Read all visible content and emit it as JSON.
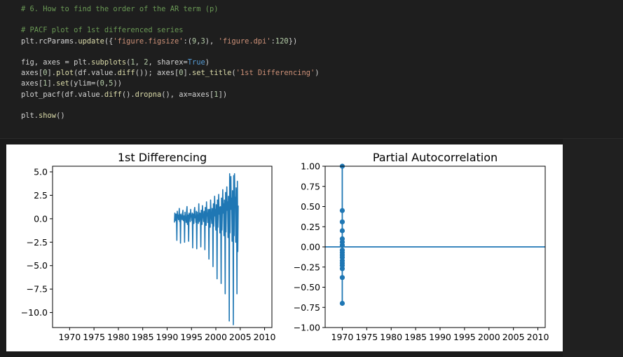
{
  "code": {
    "lines": [
      {
        "parts": [
          [
            "cmt",
            "# 6. How to find the order of the AR term (p)"
          ]
        ]
      },
      {
        "parts": []
      },
      {
        "parts": [
          [
            "cmt",
            "# PACF plot of 1st differenced series"
          ]
        ]
      },
      {
        "parts": [
          [
            "",
            "plt.rcParams."
          ],
          [
            "fn",
            "update"
          ],
          [
            "",
            "({"
          ],
          [
            "str",
            "'figure.figsize'"
          ],
          [
            "",
            ":("
          ],
          [
            "num",
            "9"
          ],
          [
            "",
            ","
          ],
          [
            "num",
            "3"
          ],
          [
            "",
            "), "
          ],
          [
            "str",
            "'figure.dpi'"
          ],
          [
            "",
            ":"
          ],
          [
            "num",
            "120"
          ],
          [
            "",
            "})"
          ]
        ]
      },
      {
        "parts": []
      },
      {
        "parts": [
          [
            "",
            "fig, axes = plt."
          ],
          [
            "fn",
            "subplots"
          ],
          [
            "",
            "("
          ],
          [
            "num",
            "1"
          ],
          [
            "",
            ", "
          ],
          [
            "num",
            "2"
          ],
          [
            "",
            ", sharex="
          ],
          [
            "kw",
            "True"
          ],
          [
            "",
            ")"
          ]
        ]
      },
      {
        "parts": [
          [
            "",
            "axes["
          ],
          [
            "num",
            "0"
          ],
          [
            "",
            "]."
          ],
          [
            "fn",
            "plot"
          ],
          [
            "",
            "(df.value."
          ],
          [
            "fn",
            "diff"
          ],
          [
            "",
            "()); axes["
          ],
          [
            "num",
            "0"
          ],
          [
            "",
            "]."
          ],
          [
            "fn",
            "set_title"
          ],
          [
            "",
            "("
          ],
          [
            "str",
            "'1st Differencing'"
          ],
          [
            "",
            ")"
          ]
        ]
      },
      {
        "parts": [
          [
            "",
            "axes["
          ],
          [
            "num",
            "1"
          ],
          [
            "",
            "]."
          ],
          [
            "fn",
            "set"
          ],
          [
            "",
            "(ylim=("
          ],
          [
            "num",
            "0"
          ],
          [
            "",
            ","
          ],
          [
            "num",
            "5"
          ],
          [
            "",
            "))"
          ]
        ]
      },
      {
        "parts": [
          [
            "",
            "plot_pacf(df.value."
          ],
          [
            "fn",
            "diff"
          ],
          [
            "",
            "()."
          ],
          [
            "fn",
            "dropna"
          ],
          [
            "",
            "(), ax=axes["
          ],
          [
            "num",
            "1"
          ],
          [
            "",
            "])"
          ]
        ]
      },
      {
        "parts": []
      },
      {
        "parts": [
          [
            "",
            "plt."
          ],
          [
            "fn",
            "show"
          ],
          [
            "",
            "()"
          ]
        ]
      }
    ]
  },
  "colors": {
    "series": "#1f77b4",
    "code_bg": "#1e1e1e",
    "page_bg": "#1b1b1b"
  },
  "chart_data": [
    {
      "type": "line",
      "title": "1st Differencing",
      "xlabel": "",
      "ylabel": "",
      "xlim": [
        1966.5,
        2011.5
      ],
      "ylim": [
        -11.6,
        5.6
      ],
      "xticks": [
        1970,
        1975,
        1980,
        1985,
        1990,
        1995,
        2000,
        2005,
        2010
      ],
      "yticks": [
        5.0,
        2.5,
        0.0,
        -2.5,
        -5.0,
        -7.5,
        -10.0
      ],
      "ytick_labels": [
        "5.0",
        "2.5",
        "0.0",
        "−2.5",
        "−5.0",
        "−7.5",
        "−10.0"
      ],
      "series": [
        {
          "x_start": 1991.5,
          "x_step": 0.0833333,
          "values": [
            -0.4,
            0.6,
            0.3,
            -0.2,
            0.5,
            0.2,
            -2.3,
            0.8,
            0.1,
            0.4,
            -0.1,
            0.2,
            1.1,
            -0.3,
            0.4,
            -2.6,
            0.5,
            0.3,
            0.2,
            -0.1,
            0.6,
            0.9,
            -0.2,
            0.1,
            0.3,
            -2.5,
            0.7,
            0.0,
            0.2,
            -0.4,
            0.8,
            1.3,
            -0.6,
            0.3,
            0.4,
            -2.4,
            0.6,
            0.1,
            0.5,
            -0.3,
            1.0,
            0.2,
            0.4,
            -0.2,
            0.6,
            -3.1,
            0.5,
            0.3,
            -0.5,
            0.9,
            1.2,
            0.1,
            0.2,
            -0.4,
            0.8,
            -3.2,
            0.7,
            0.1,
            0.4,
            -0.5,
            1.6,
            -0.3,
            0.2,
            0.6,
            0.5,
            -3.0,
            0.9,
            0.3,
            -0.6,
            1.4,
            0.5,
            0.2,
            -0.3,
            0.8,
            0.6,
            -3.3,
            1.2,
            0.4,
            -0.7,
            1.8,
            0.3,
            0.6,
            -0.4,
            1.0,
            0.2,
            -4.3,
            1.0,
            0.5,
            -0.9,
            2.0,
            0.8,
            0.1,
            -0.5,
            1.1,
            0.7,
            -5.1,
            1.6,
            -0.8,
            0.6,
            2.4,
            0.3,
            1.0,
            -1.2,
            1.5,
            0.6,
            -6.4,
            2.0,
            -0.9,
            0.8,
            2.6,
            0.5,
            1.2,
            -1.5,
            1.3,
            1.1,
            -6.9,
            2.2,
            -1.2,
            0.9,
            3.1,
            0.6,
            1.6,
            -1.8,
            2.0,
            1.4,
            -8.0,
            2.8,
            -1.4,
            1.2,
            3.4,
            0.9,
            1.8,
            -2.0,
            2.4,
            1.7,
            -10.9,
            4.8,
            -1.5,
            2.1,
            4.5,
            1.0,
            2.2,
            -2.4,
            3.0,
            1.9,
            -11.3,
            4.6,
            -1.8,
            4.8,
            1.2,
            2.3,
            -2.5,
            3.3,
            2.0,
            -8.0,
            4.0,
            -3.5,
            1.4
          ]
        }
      ]
    },
    {
      "type": "scatter",
      "title": "Partial Autocorrelation",
      "xlabel": "",
      "ylabel": "",
      "xlim": [
        1966.5,
        2011.5
      ],
      "ylim": [
        -1.0,
        1.0
      ],
      "xticks": [
        1970,
        1975,
        1980,
        1985,
        1990,
        1995,
        2000,
        2005,
        2010
      ],
      "yticks": [
        1.0,
        0.75,
        0.5,
        0.25,
        0.0,
        -0.25,
        -0.5,
        -0.75,
        -1.0
      ],
      "ytick_labels": [
        "1.00",
        "0.75",
        "0.50",
        "0.25",
        "0.00",
        "−0.25",
        "−0.50",
        "−0.75",
        "−1.00"
      ],
      "series": [
        {
          "x": 1970,
          "values": [
            1.0,
            0.45,
            0.31,
            0.2,
            0.1,
            0.06,
            0.02,
            -0.04,
            -0.07,
            -0.1,
            -0.13,
            -0.17,
            -0.2,
            -0.23,
            -0.27,
            -0.38,
            -0.7
          ]
        }
      ],
      "hline": 0.0
    }
  ]
}
